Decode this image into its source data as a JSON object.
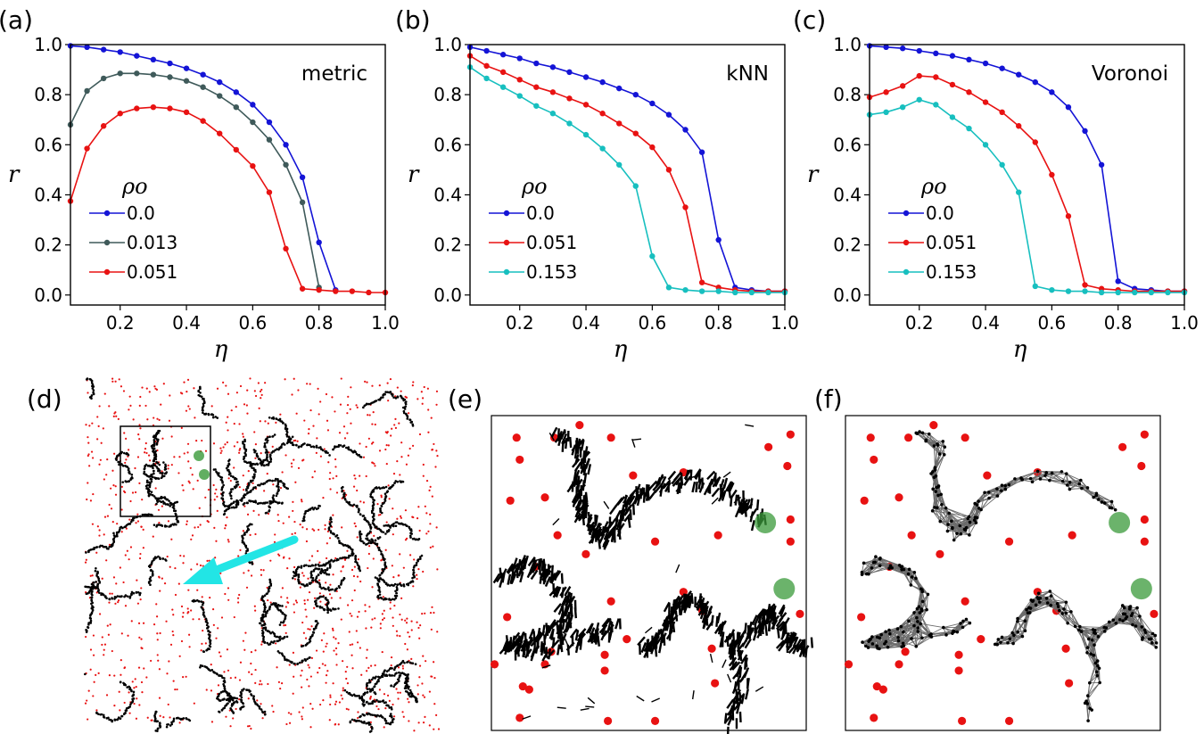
{
  "panel_labels": [
    "(a)",
    "(b)",
    "(c)",
    "(d)",
    "(e)",
    "(f)"
  ],
  "chart_data": [
    {
      "type": "line",
      "panel": "(a)",
      "xlabel": "η",
      "ylabel": "r",
      "xlim": [
        0.05,
        1.0
      ],
      "ylim": [
        -0.04,
        1.0
      ],
      "xticks": [
        0.2,
        0.4,
        0.6,
        0.8,
        1.0
      ],
      "yticks": [
        0.0,
        0.2,
        0.4,
        0.6,
        0.8,
        1.0
      ],
      "xtick_labels": [
        "0.2",
        "0.4",
        "0.6",
        "0.8",
        "1.0"
      ],
      "ytick_labels": [
        "0.0",
        "0.2",
        "0.4",
        "0.6",
        "0.8",
        "1.0"
      ],
      "annotation": "metric",
      "legend_title": "ρo",
      "series": [
        {
          "name": "0.0",
          "color": "#1414d6",
          "x": [
            0.05,
            0.1,
            0.15,
            0.2,
            0.25,
            0.3,
            0.35,
            0.4,
            0.45,
            0.5,
            0.55,
            0.6,
            0.65,
            0.7,
            0.75,
            0.8,
            0.85
          ],
          "values": [
            0.995,
            0.99,
            0.98,
            0.97,
            0.955,
            0.94,
            0.925,
            0.905,
            0.88,
            0.85,
            0.81,
            0.76,
            0.69,
            0.6,
            0.47,
            0.21,
            0.02
          ]
        },
        {
          "name": "0.013",
          "color": "#3f5a5a",
          "x": [
            0.05,
            0.1,
            0.15,
            0.2,
            0.25,
            0.3,
            0.35,
            0.4,
            0.45,
            0.5,
            0.55,
            0.6,
            0.65,
            0.7,
            0.75,
            0.8
          ],
          "values": [
            0.68,
            0.815,
            0.865,
            0.885,
            0.885,
            0.88,
            0.87,
            0.855,
            0.83,
            0.795,
            0.75,
            0.69,
            0.62,
            0.52,
            0.37,
            0.03
          ]
        },
        {
          "name": "0.051",
          "color": "#e81212",
          "x": [
            0.05,
            0.1,
            0.15,
            0.2,
            0.25,
            0.3,
            0.35,
            0.4,
            0.45,
            0.5,
            0.55,
            0.6,
            0.65,
            0.7,
            0.75,
            0.8,
            0.85,
            0.9,
            0.95,
            1.0
          ],
          "values": [
            0.375,
            0.585,
            0.675,
            0.725,
            0.745,
            0.75,
            0.745,
            0.73,
            0.695,
            0.645,
            0.58,
            0.515,
            0.41,
            0.185,
            0.025,
            0.02,
            0.015,
            0.015,
            0.01,
            0.01
          ]
        }
      ]
    },
    {
      "type": "line",
      "panel": "(b)",
      "xlabel": "η",
      "ylabel": "r",
      "xlim": [
        0.05,
        1.0
      ],
      "ylim": [
        -0.04,
        1.0
      ],
      "xticks": [
        0.2,
        0.4,
        0.6,
        0.8,
        1.0
      ],
      "yticks": [
        0.0,
        0.2,
        0.4,
        0.6,
        0.8,
        1.0
      ],
      "xtick_labels": [
        "0.2",
        "0.4",
        "0.6",
        "0.8",
        "1.0"
      ],
      "ytick_labels": [
        "0.0",
        "0.2",
        "0.4",
        "0.6",
        "0.8",
        "1.0"
      ],
      "annotation": "kNN",
      "legend_title": "ρo",
      "series": [
        {
          "name": "0.0",
          "color": "#1414d6",
          "x": [
            0.05,
            0.1,
            0.15,
            0.2,
            0.25,
            0.3,
            0.35,
            0.4,
            0.45,
            0.5,
            0.55,
            0.6,
            0.65,
            0.7,
            0.75,
            0.8,
            0.85,
            0.9,
            0.95,
            1.0
          ],
          "values": [
            0.99,
            0.975,
            0.96,
            0.945,
            0.925,
            0.91,
            0.89,
            0.87,
            0.85,
            0.825,
            0.8,
            0.765,
            0.72,
            0.66,
            0.57,
            0.22,
            0.03,
            0.02,
            0.015,
            0.015
          ]
        },
        {
          "name": "0.051",
          "color": "#e81212",
          "x": [
            0.05,
            0.1,
            0.15,
            0.2,
            0.25,
            0.3,
            0.35,
            0.4,
            0.45,
            0.5,
            0.55,
            0.6,
            0.65,
            0.7,
            0.75,
            0.8,
            0.85,
            0.9,
            0.95,
            1.0
          ],
          "values": [
            0.955,
            0.915,
            0.89,
            0.86,
            0.83,
            0.81,
            0.785,
            0.76,
            0.725,
            0.685,
            0.645,
            0.59,
            0.5,
            0.35,
            0.05,
            0.03,
            0.02,
            0.015,
            0.015,
            0.015
          ]
        },
        {
          "name": "0.153",
          "color": "#17bfbf",
          "x": [
            0.05,
            0.1,
            0.15,
            0.2,
            0.25,
            0.3,
            0.35,
            0.4,
            0.45,
            0.5,
            0.55,
            0.6,
            0.65,
            0.7,
            0.75,
            0.8,
            0.85,
            0.9,
            0.95,
            1.0
          ],
          "values": [
            0.91,
            0.865,
            0.83,
            0.795,
            0.755,
            0.725,
            0.685,
            0.64,
            0.585,
            0.52,
            0.435,
            0.155,
            0.03,
            0.02,
            0.015,
            0.015,
            0.01,
            0.01,
            0.01,
            0.01
          ]
        }
      ]
    },
    {
      "type": "line",
      "panel": "(c)",
      "xlabel": "η",
      "ylabel": "r",
      "xlim": [
        0.05,
        1.0
      ],
      "ylim": [
        -0.04,
        1.0
      ],
      "xticks": [
        0.2,
        0.4,
        0.6,
        0.8,
        1.0
      ],
      "yticks": [
        0.0,
        0.2,
        0.4,
        0.6,
        0.8,
        1.0
      ],
      "xtick_labels": [
        "0.2",
        "0.4",
        "0.6",
        "0.8",
        "1.0"
      ],
      "ytick_labels": [
        "0.0",
        "0.2",
        "0.4",
        "0.6",
        "0.8",
        "1.0"
      ],
      "annotation": "Voronoi",
      "legend_title": "ρo",
      "series": [
        {
          "name": "0.0",
          "color": "#1414d6",
          "x": [
            0.05,
            0.1,
            0.15,
            0.2,
            0.25,
            0.3,
            0.35,
            0.4,
            0.45,
            0.5,
            0.55,
            0.6,
            0.65,
            0.7,
            0.75,
            0.8,
            0.85,
            0.9,
            0.95,
            1.0
          ],
          "values": [
            0.995,
            0.99,
            0.985,
            0.975,
            0.965,
            0.955,
            0.94,
            0.925,
            0.905,
            0.88,
            0.85,
            0.81,
            0.75,
            0.655,
            0.52,
            0.055,
            0.025,
            0.02,
            0.015,
            0.015
          ]
        },
        {
          "name": "0.051",
          "color": "#e81212",
          "x": [
            0.05,
            0.1,
            0.15,
            0.2,
            0.25,
            0.3,
            0.35,
            0.4,
            0.45,
            0.5,
            0.55,
            0.6,
            0.65,
            0.7,
            0.75,
            0.8,
            0.85,
            0.9,
            0.95,
            1.0
          ],
          "values": [
            0.79,
            0.81,
            0.835,
            0.875,
            0.87,
            0.84,
            0.81,
            0.77,
            0.73,
            0.675,
            0.61,
            0.48,
            0.315,
            0.04,
            0.025,
            0.02,
            0.015,
            0.015,
            0.015,
            0.015
          ]
        },
        {
          "name": "0.153",
          "color": "#17bfbf",
          "x": [
            0.05,
            0.1,
            0.15,
            0.2,
            0.25,
            0.3,
            0.35,
            0.4,
            0.45,
            0.5,
            0.55,
            0.6,
            0.65,
            0.7,
            0.75,
            0.8,
            0.85,
            0.9,
            0.95,
            1.0
          ],
          "values": [
            0.72,
            0.73,
            0.75,
            0.78,
            0.76,
            0.71,
            0.665,
            0.6,
            0.52,
            0.41,
            0.035,
            0.02,
            0.015,
            0.015,
            0.01,
            0.01,
            0.01,
            0.01,
            0.01,
            0.01
          ]
        }
      ]
    }
  ],
  "snapshots": {
    "d": {
      "description_free": true,
      "agent_color": "#000000",
      "obstacle_color": "#e81212",
      "leader_color": "#3a9a3a",
      "arrow_color": "#22e5e5"
    },
    "e": {
      "agent_color": "#000000",
      "obstacle_color": "#e81212",
      "leader_color": "#3a9a3a"
    },
    "f": {
      "agent_color": "#000000",
      "obstacle_color": "#e81212",
      "leader_color": "#3a9a3a",
      "edge_color": "#6b6b6b"
    }
  }
}
